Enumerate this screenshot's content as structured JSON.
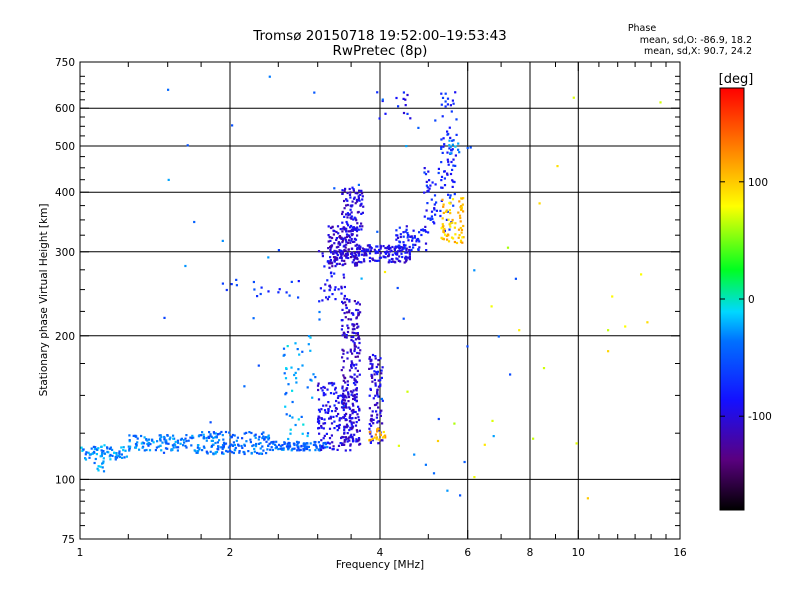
{
  "chart_data": {
    "type": "scatter",
    "title": "Tromsø 20150718 19:52:00–19:53:43",
    "subtitle": "RwPretec (8p)",
    "xlabel": "Frequency [MHz]",
    "ylabel": "Stationary phase Virtual Height [km]",
    "x_scale": "log2",
    "y_scale": "log",
    "xlim": [
      1,
      16
    ],
    "ylim": [
      75,
      750
    ],
    "x_ticks": [
      1,
      2,
      4,
      6,
      8,
      10,
      16
    ],
    "y_ticks": [
      75,
      100,
      200,
      300,
      400,
      500,
      600,
      750
    ],
    "x_gridlines": [
      2,
      4,
      6,
      8,
      10
    ],
    "y_gridlines": [
      100,
      200,
      300,
      400,
      500,
      600
    ],
    "grid": true,
    "phase_stats": {
      "heading": "Phase",
      "line_o": "mean, sd,O: -86.9, 18.2",
      "line_x": "mean, sd,X:  90.7, 24.2"
    },
    "colorbar": {
      "label": "[deg]",
      "ticks": [
        "100",
        "0",
        "-100"
      ],
      "tick_values": [
        100,
        0,
        -100
      ],
      "range": [
        -180,
        180
      ]
    },
    "point_groups": [
      {
        "f": [
          1.0,
          1.25
        ],
        "h": [
          110,
          118
        ],
        "phase": -30,
        "n": 70
      },
      {
        "f": [
          1.05,
          1.12
        ],
        "h": [
          104,
          110
        ],
        "phase": -25,
        "n": 10
      },
      {
        "f": [
          1.25,
          1.7
        ],
        "h": [
          115,
          124
        ],
        "phase": -35,
        "n": 110
      },
      {
        "f": [
          1.7,
          2.4
        ],
        "h": [
          113,
          126
        ],
        "phase": -40,
        "n": 160
      },
      {
        "f": [
          2.4,
          3.15
        ],
        "h": [
          115,
          120
        ],
        "phase": -45,
        "n": 110
      },
      {
        "f": [
          2.55,
          2.95
        ],
        "h": [
          120,
          200
        ],
        "phase": -25,
        "n": 45
      },
      {
        "f": [
          3.0,
          3.55
        ],
        "h": [
          115,
          160
        ],
        "phase": -95,
        "n": 160
      },
      {
        "f": [
          3.35,
          3.65
        ],
        "h": [
          118,
          240
        ],
        "phase": -105,
        "n": 220
      },
      {
        "f": [
          3.8,
          4.05
        ],
        "h": [
          118,
          185
        ],
        "phase": -100,
        "n": 90
      },
      {
        "f": [
          3.8,
          4.1
        ],
        "h": [
          120,
          128
        ],
        "phase": 105,
        "n": 22
      },
      {
        "f": [
          3.0,
          3.4
        ],
        "h": [
          235,
          310
        ],
        "phase": -90,
        "n": 45
      },
      {
        "f": [
          3.15,
          3.6
        ],
        "h": [
          280,
          340
        ],
        "phase": -105,
        "n": 170
      },
      {
        "f": [
          3.35,
          3.7
        ],
        "h": [
          330,
          410
        ],
        "phase": -100,
        "n": 90
      },
      {
        "f": [
          3.6,
          4.6
        ],
        "h": [
          285,
          310
        ],
        "phase": -95,
        "n": 150
      },
      {
        "f": [
          4.3,
          5.0
        ],
        "h": [
          300,
          340
        ],
        "phase": -85,
        "n": 60
      },
      {
        "f": [
          4.9,
          5.7
        ],
        "h": [
          330,
          450
        ],
        "phase": -80,
        "n": 70
      },
      {
        "f": [
          5.3,
          5.7
        ],
        "h": [
          450,
          650
        ],
        "phase": -75,
        "n": 45
      },
      {
        "f": [
          5.5,
          5.8
        ],
        "h": [
          480,
          520
        ],
        "phase": -25,
        "n": 10
      },
      {
        "f": [
          5.3,
          5.9
        ],
        "h": [
          310,
          390
        ],
        "phase": 100,
        "n": 70
      },
      {
        "f": [
          3.85,
          4.6
        ],
        "h": [
          570,
          650
        ],
        "phase": -85,
        "n": 14
      },
      {
        "f": [
          1.9,
          2.8
        ],
        "h": [
          240,
          265
        ],
        "phase": -70,
        "n": 18
      },
      {
        "f": [
          1.4,
          7.5
        ],
        "h": [
          88,
          700
        ],
        "phase": -40,
        "n": 50
      },
      {
        "f": [
          4.0,
          15.0
        ],
        "h": [
          85,
          650
        ],
        "phase": 80,
        "n": 25
      }
    ]
  }
}
